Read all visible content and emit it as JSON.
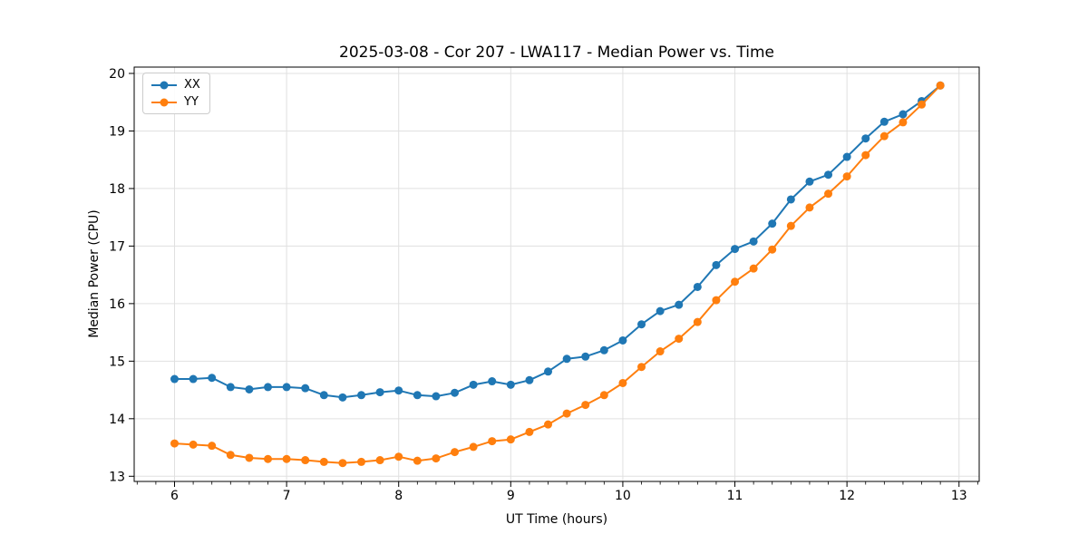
{
  "figure": {
    "title": "2025-03-08 - Cor 207 - LWA117 - Median Power vs. Time",
    "xlabel": "UT Time (hours)",
    "ylabel": "Median Power (CPU)"
  },
  "chart_data": {
    "type": "line",
    "title": "2025-03-08 - Cor 207 - LWA117 - Median Power vs. Time",
    "xlabel": "UT Time (hours)",
    "ylabel": "Median Power (CPU)",
    "xlim": [
      5.64,
      13.18
    ],
    "ylim": [
      12.91,
      20.11
    ],
    "xticks": [
      6,
      7,
      8,
      9,
      10,
      11,
      12,
      13
    ],
    "yticks": [
      13,
      14,
      15,
      16,
      17,
      18,
      19,
      20
    ],
    "grid": true,
    "grid_color": "#e0e0e0",
    "legend_position": "upper-left",
    "marker": "circle",
    "x": [
      6.0,
      6.1667,
      6.3333,
      6.5,
      6.6667,
      6.8333,
      7.0,
      7.1667,
      7.3333,
      7.5,
      7.6667,
      7.8333,
      8.0,
      8.1667,
      8.3333,
      8.5,
      8.6667,
      8.8333,
      9.0,
      9.1667,
      9.3333,
      9.5,
      9.6667,
      9.8333,
      10.0,
      10.1667,
      10.3333,
      10.5,
      10.6667,
      10.8333,
      11.0,
      11.1667,
      11.3333,
      11.5,
      11.6667,
      11.8333,
      12.0,
      12.1667,
      12.3333,
      12.5,
      12.6667,
      12.8333
    ],
    "series": [
      {
        "name": "XX",
        "color": "#1f77b4",
        "values": [
          14.69,
          14.69,
          14.71,
          14.55,
          14.51,
          14.55,
          14.55,
          14.53,
          14.41,
          14.37,
          14.41,
          14.46,
          14.49,
          14.41,
          14.39,
          14.45,
          14.59,
          14.65,
          14.59,
          14.67,
          14.82,
          15.04,
          15.08,
          15.19,
          15.36,
          15.64,
          15.87,
          15.98,
          16.29,
          16.67,
          16.95,
          17.08,
          17.39,
          17.81,
          18.12,
          18.24,
          18.55,
          18.87,
          19.16,
          19.29,
          19.52,
          19.79
        ]
      },
      {
        "name": "YY",
        "color": "#ff7f0e",
        "values": [
          13.57,
          13.55,
          13.53,
          13.37,
          13.32,
          13.3,
          13.3,
          13.28,
          13.25,
          13.23,
          13.25,
          13.28,
          13.34,
          13.27,
          13.31,
          13.42,
          13.51,
          13.61,
          13.64,
          13.77,
          13.9,
          14.09,
          14.24,
          14.41,
          14.62,
          14.9,
          15.17,
          15.39,
          15.68,
          16.06,
          16.38,
          16.61,
          16.94,
          17.35,
          17.67,
          17.91,
          18.21,
          18.58,
          18.91,
          19.15,
          19.46,
          19.79
        ]
      }
    ]
  }
}
